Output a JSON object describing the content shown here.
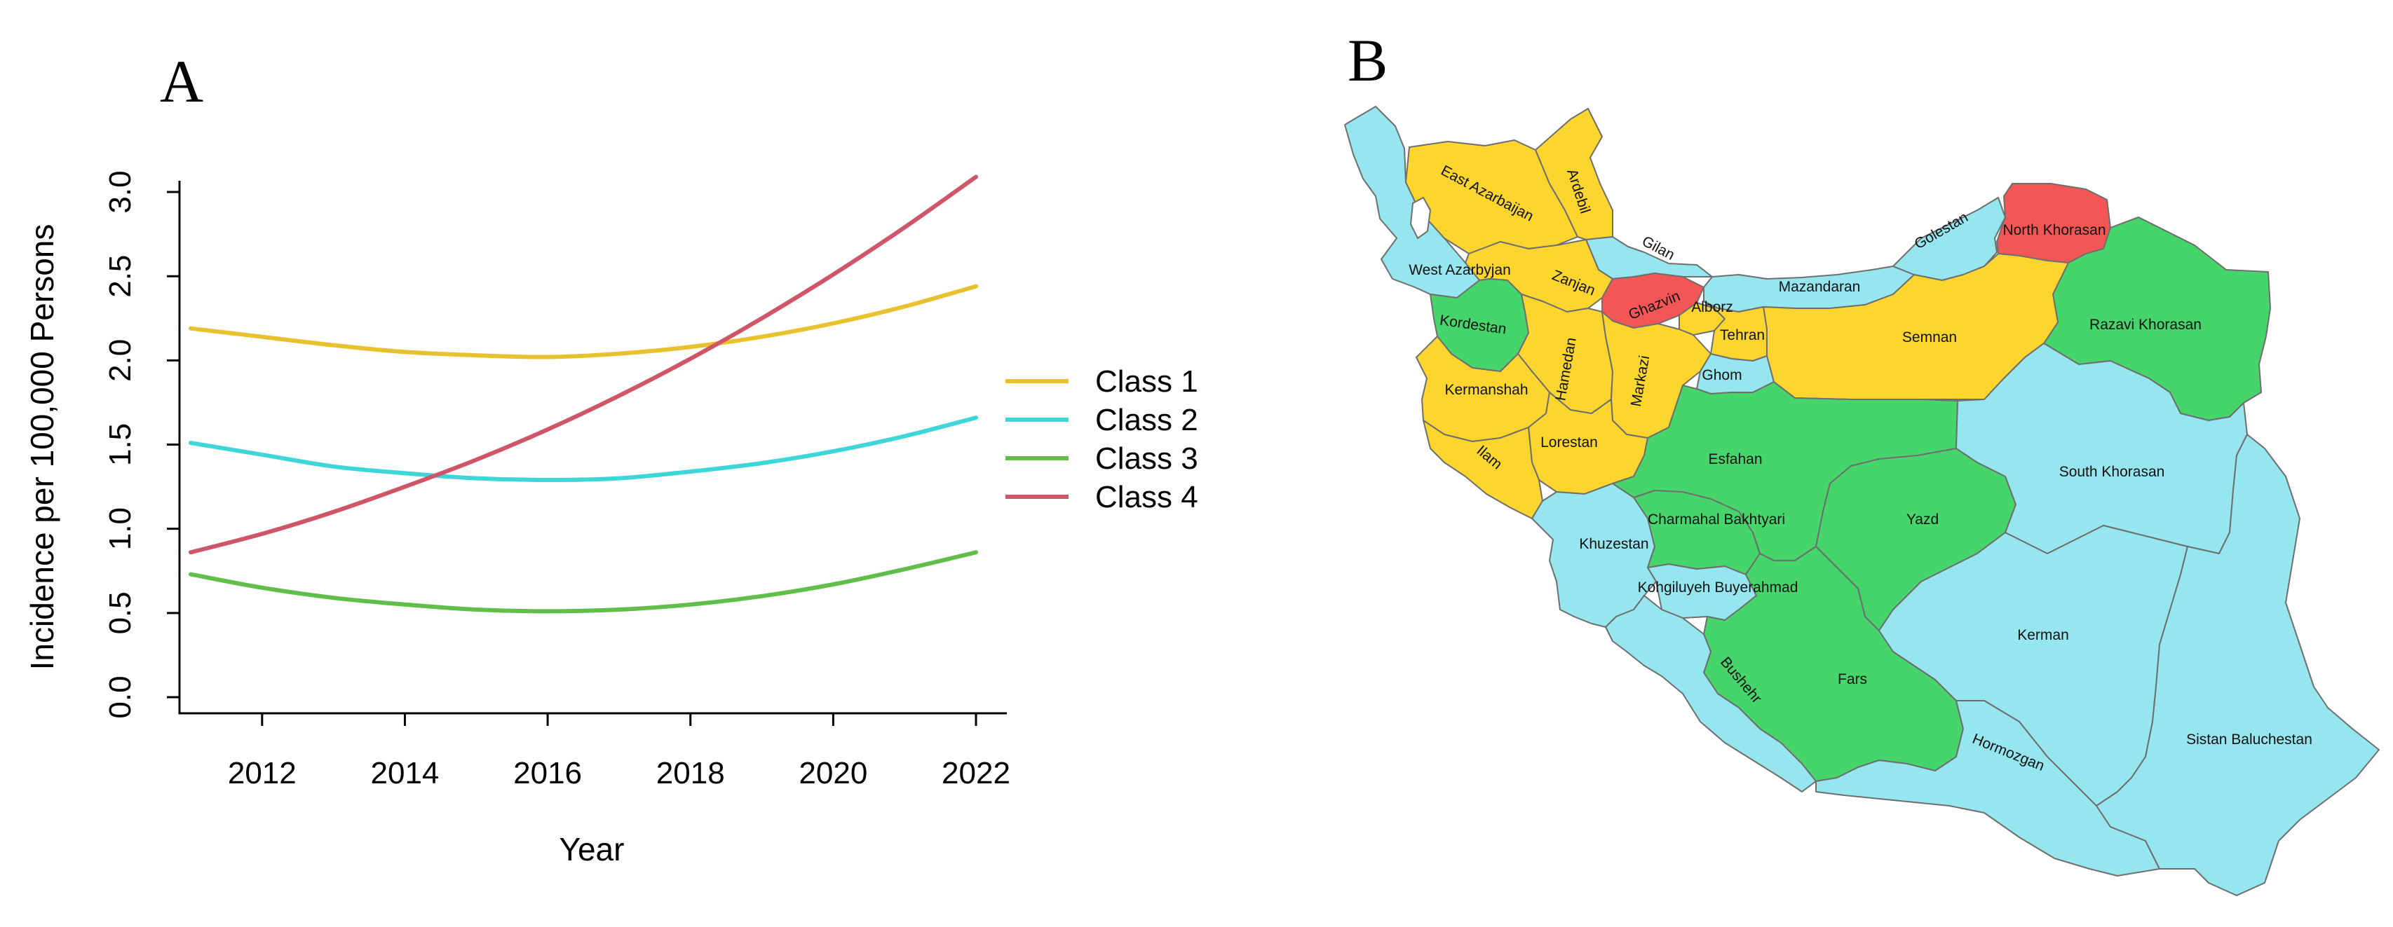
{
  "panels": {
    "a_label": "A",
    "b_label": "B"
  },
  "chart_data": {
    "type": "line",
    "title": "",
    "xlabel": "Year",
    "ylabel": "Incidence per 100,000 Persons",
    "xlim": [
      2011,
      2022
    ],
    "ylim": [
      0,
      3.1
    ],
    "x": [
      2011,
      2012,
      2013,
      2014,
      2015,
      2016,
      2017,
      2018,
      2019,
      2020,
      2021,
      2022
    ],
    "xticks": [
      "2012",
      "2014",
      "2016",
      "2018",
      "2020",
      "2022"
    ],
    "yticks": [
      "0.0",
      "0.5",
      "1.0",
      "1.5",
      "2.0",
      "2.5",
      "3.0"
    ],
    "legend_position": "right",
    "grid": false,
    "series": [
      {
        "name": "Class 1",
        "color": "#E8C22E",
        "values": [
          2.19,
          2.14,
          2.09,
          2.05,
          2.03,
          2.02,
          2.04,
          2.08,
          2.14,
          2.22,
          2.32,
          2.44
        ]
      },
      {
        "name": "Class 2",
        "color": "#3ED6D8",
        "values": [
          1.51,
          1.44,
          1.37,
          1.33,
          1.3,
          1.29,
          1.3,
          1.34,
          1.39,
          1.46,
          1.55,
          1.66
        ]
      },
      {
        "name": "Class 3",
        "color": "#62BE4A",
        "values": [
          0.73,
          0.65,
          0.59,
          0.55,
          0.52,
          0.51,
          0.52,
          0.55,
          0.6,
          0.67,
          0.76,
          0.86
        ]
      },
      {
        "name": "Class 4",
        "color": "#CF5568",
        "values": [
          0.86,
          0.97,
          1.1,
          1.25,
          1.41,
          1.59,
          1.79,
          2.01,
          2.25,
          2.51,
          2.79,
          3.09
        ]
      }
    ]
  },
  "map": {
    "class_colors": {
      "class_1": "#FCD62F",
      "class_2": "#95E6EF",
      "class_3": "#45D56A",
      "class_4": "#F45656"
    },
    "regions": [
      {
        "label": "East Azarbaijan",
        "class": "class_1"
      },
      {
        "label": "Ardebil",
        "class": "class_1"
      },
      {
        "label": "Gilan",
        "class": "class_2"
      },
      {
        "label": "West Azarbyjan",
        "class": "class_2"
      },
      {
        "label": "Zanjan",
        "class": "class_1"
      },
      {
        "label": "Ghazvin",
        "class": "class_4"
      },
      {
        "label": "Mazandaran",
        "class": "class_2"
      },
      {
        "label": "Golestan",
        "class": "class_2"
      },
      {
        "label": "North Khorasan",
        "class": "class_4"
      },
      {
        "label": "Razavi Khorasan",
        "class": "class_3"
      },
      {
        "label": "Alborz",
        "class": "class_1"
      },
      {
        "label": "Tehran",
        "class": "class_1"
      },
      {
        "label": "Semnan",
        "class": "class_1"
      },
      {
        "label": "Kordestan",
        "class": "class_3"
      },
      {
        "label": "Hamedan",
        "class": "class_1"
      },
      {
        "label": "Markazi",
        "class": "class_1"
      },
      {
        "label": "Ghom",
        "class": "class_2"
      },
      {
        "label": "Kermanshah",
        "class": "class_1"
      },
      {
        "label": "Lorestan",
        "class": "class_1"
      },
      {
        "label": "Ilam",
        "class": "class_1"
      },
      {
        "label": "Esfahan",
        "class": "class_3"
      },
      {
        "label": "South Khorasan",
        "class": "class_2"
      },
      {
        "label": "Charmahal Bakhtyari",
        "class": "class_3"
      },
      {
        "label": "Yazd",
        "class": "class_3"
      },
      {
        "label": "Khuzestan",
        "class": "class_2"
      },
      {
        "label": "Kohgiluyeh Buyerahmad",
        "class": "class_2"
      },
      {
        "label": "Kerman",
        "class": "class_2"
      },
      {
        "label": "Bushehr",
        "class": "class_2"
      },
      {
        "label": "Fars",
        "class": "class_3"
      },
      {
        "label": "Hormozgan",
        "class": "class_2"
      },
      {
        "label": "Sistan Baluchestan",
        "class": "class_2"
      }
    ]
  }
}
